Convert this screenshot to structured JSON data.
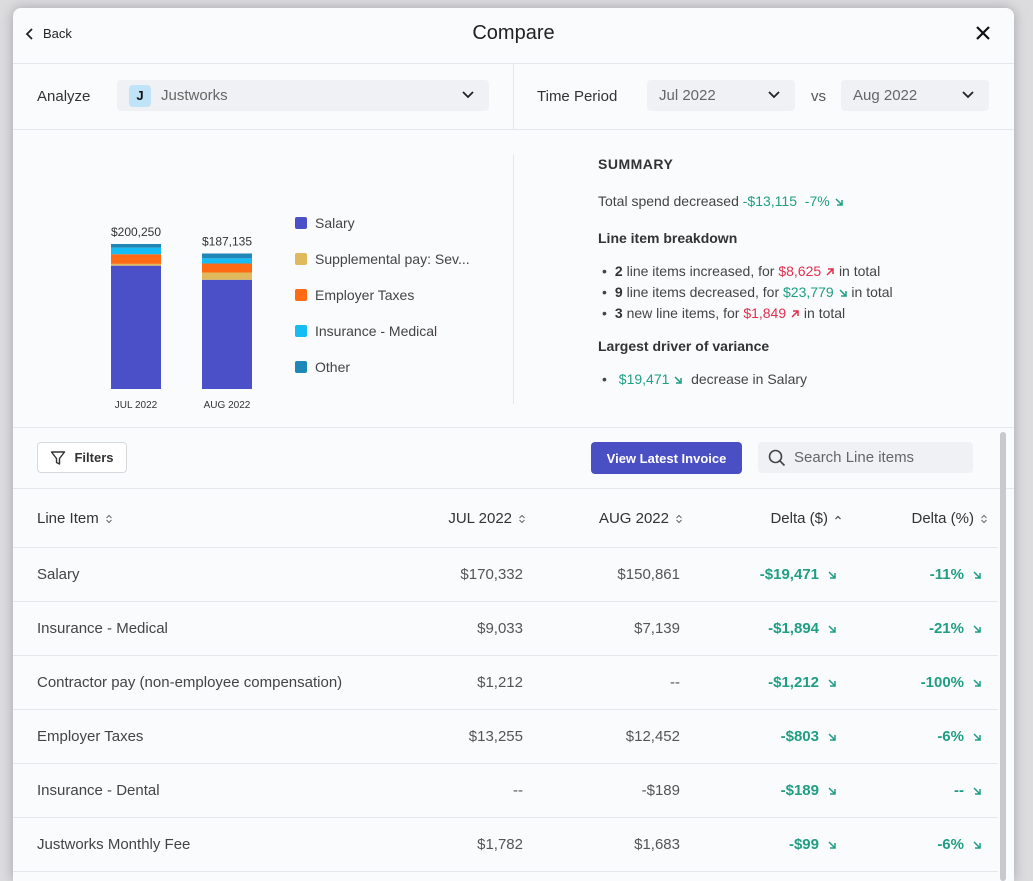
{
  "header": {
    "back_label": "Back",
    "title": "Compare"
  },
  "controls": {
    "analyze_label": "Analyze",
    "vendor": {
      "initial": "J",
      "name": "Justworks"
    },
    "time_period_label": "Time Period",
    "period_a": "Jul 2022",
    "vs_label": "vs",
    "period_b": "Aug 2022"
  },
  "chart_data": {
    "type": "bar",
    "stacked": true,
    "categories": [
      "JUL 2022",
      "AUG 2022"
    ],
    "totals": [
      "$200,250",
      "$187,135"
    ],
    "total_values": [
      200250,
      187135
    ],
    "series": [
      {
        "name": "Salary",
        "color": "#4b50c8",
        "values": [
          170332,
          150861
        ]
      },
      {
        "name": "Supplemental pay: Sev...",
        "color": "#e0b95c",
        "values": [
          2500,
          10000
        ]
      },
      {
        "name": "Employer Taxes",
        "color": "#ff6a13",
        "values": [
          13255,
          12452
        ]
      },
      {
        "name": "Insurance - Medical",
        "color": "#16bdf5",
        "values": [
          9033,
          7139
        ]
      },
      {
        "name": "Other",
        "color": "#1f86b8",
        "values": [
          5130,
          6683
        ]
      }
    ]
  },
  "summary": {
    "title": "SUMMARY",
    "total_prefix": "Total spend decreased",
    "total_amount": "-$13,115",
    "total_pct": "-7%",
    "breakdown_title": "Line item breakdown",
    "bullets": [
      {
        "count": "2",
        "text": "line items increased, for",
        "amount": "$8,625",
        "suffix": "in total",
        "dir": "up"
      },
      {
        "count": "9",
        "text": "line items decreased, for",
        "amount": "$23,779",
        "suffix": "in total",
        "dir": "down"
      },
      {
        "count": "3",
        "text": "new line items, for",
        "amount": "$1,849",
        "suffix": "in total",
        "dir": "up"
      }
    ],
    "driver_title": "Largest driver of variance",
    "driver_amount": "$19,471",
    "driver_text": "decrease in Salary"
  },
  "toolbar": {
    "filters_label": "Filters",
    "view_invoice_label": "View Latest Invoice",
    "search_placeholder": "Search Line items"
  },
  "table": {
    "columns": [
      "Line Item",
      "JUL 2022",
      "AUG 2022",
      "Delta ($)",
      "Delta (%)"
    ],
    "rows": [
      {
        "item": "Salary",
        "jul": "$170,332",
        "aug": "$150,861",
        "delta": "-$19,471",
        "pct": "-11%"
      },
      {
        "item": "Insurance - Medical",
        "jul": "$9,033",
        "aug": "$7,139",
        "delta": "-$1,894",
        "pct": "-21%"
      },
      {
        "item": "Contractor pay (non-employee compensation)",
        "jul": "$1,212",
        "aug": "--",
        "delta": "-$1,212",
        "pct": "-100%"
      },
      {
        "item": "Employer Taxes",
        "jul": "$13,255",
        "aug": "$12,452",
        "delta": "-$803",
        "pct": "-6%"
      },
      {
        "item": "Insurance - Dental",
        "jul": "--",
        "aug": "-$189",
        "delta": "-$189",
        "pct": "--"
      },
      {
        "item": "Justworks Monthly Fee",
        "jul": "$1,782",
        "aug": "$1,683",
        "delta": "-$99",
        "pct": "-6%"
      }
    ]
  }
}
